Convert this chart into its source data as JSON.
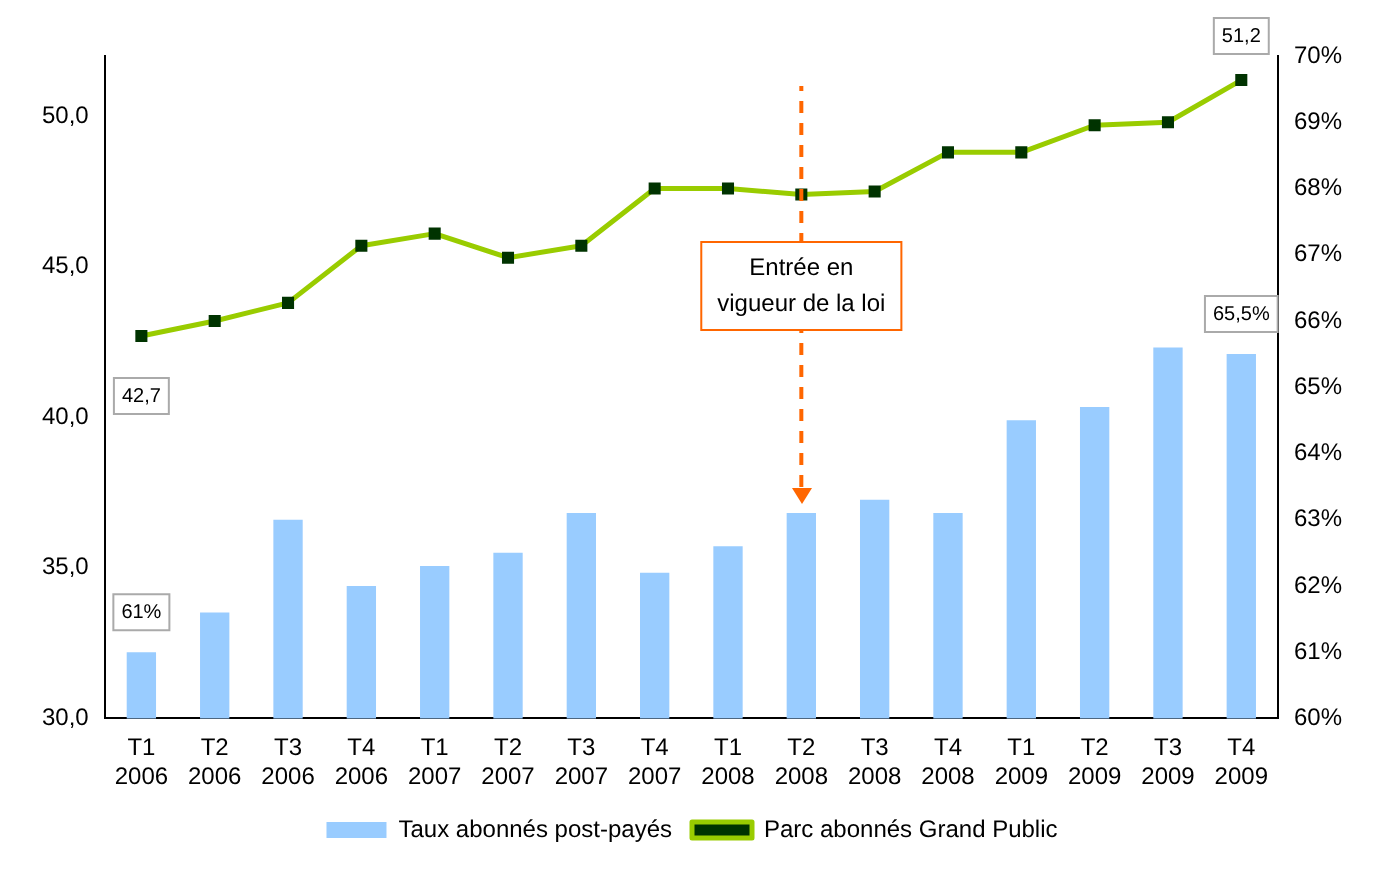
{
  "chart_data": {
    "type": "bar",
    "categories": [
      "T1 2006",
      "T2 2006",
      "T3 2006",
      "T4 2006",
      "T1 2007",
      "T2 2007",
      "T3 2007",
      "T4 2007",
      "T1 2008",
      "T2 2008",
      "T3 2008",
      "T4 2008",
      "T1 2009",
      "T2 2009",
      "T3 2009",
      "T4 2009"
    ],
    "series": [
      {
        "name": "Taux abonnés post-payés",
        "axis": "y2",
        "color": "#99ccff",
        "values": [
          61,
          61.6,
          63.0,
          62.0,
          62.3,
          62.5,
          63.1,
          62.2,
          62.6,
          63.1,
          63.3,
          63.1,
          64.5,
          64.7,
          65.6,
          65.5
        ],
        "value_labels": [
          "61%",
          null,
          null,
          null,
          null,
          null,
          null,
          null,
          null,
          null,
          null,
          null,
          null,
          null,
          null,
          "65,5%"
        ]
      },
      {
        "name": "Parc abonnés Grand Public",
        "type": "line",
        "color": "#99cc00",
        "marker": "square",
        "values": [
          42.7,
          43.2,
          43.8,
          45.7,
          46.1,
          45.3,
          45.7,
          47.6,
          47.6,
          47.4,
          47.5,
          48.8,
          48.8,
          49.7,
          49.8,
          51.2
        ],
        "value_labels": [
          "42,7",
          null,
          null,
          null,
          null,
          null,
          null,
          null,
          null,
          null,
          null,
          null,
          null,
          null,
          null,
          "51,2"
        ]
      }
    ],
    "ylim": [
      30,
      52
    ],
    "yticks": [
      {
        "value": 30,
        "label": "30,0"
      },
      {
        "value": 35,
        "label": "35,0"
      },
      {
        "value": 40,
        "label": "40,0"
      },
      {
        "value": 45,
        "label": "45,0"
      },
      {
        "value": 50,
        "label": "50,0"
      }
    ],
    "y2lim": [
      60,
      70
    ],
    "y2ticks": [
      {
        "value": 60,
        "label": "60%"
      },
      {
        "value": 61,
        "label": "61%"
      },
      {
        "value": 62,
        "label": "62%"
      },
      {
        "value": 63,
        "label": "63%"
      },
      {
        "value": 64,
        "label": "64%"
      },
      {
        "value": 65,
        "label": "65%"
      },
      {
        "value": 66,
        "label": "66%"
      },
      {
        "value": 67,
        "label": "67%"
      },
      {
        "value": 68,
        "label": "68%"
      },
      {
        "value": 69,
        "label": "69%"
      },
      {
        "value": 70,
        "label": "70%"
      }
    ],
    "ref_lines": [
      {
        "axis": "x",
        "value": "T2 2008",
        "label": "Entrée en vigueur de la loi",
        "color": "#ff6600",
        "line_style": "dashed"
      }
    ],
    "grid": false,
    "legend": "bottom"
  }
}
